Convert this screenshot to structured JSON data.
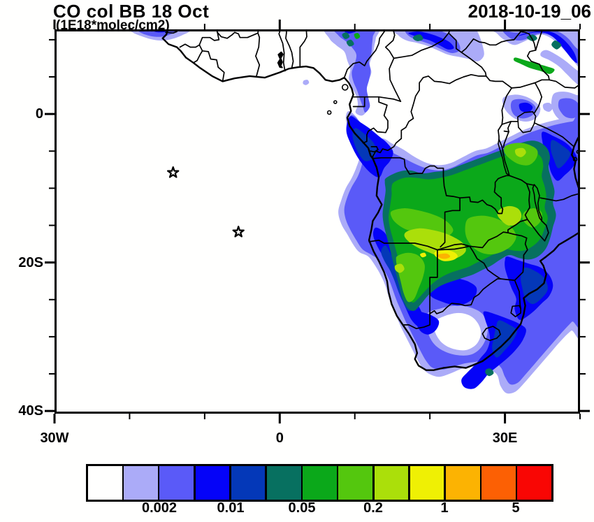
{
  "header": {
    "title": "CO col BB 18 Oct",
    "subtitle": "(1E18*molec/cm2)",
    "date": "2018-10-19_06"
  },
  "axis": {
    "y_major": [
      {
        "label": "0",
        "lat": 0
      },
      {
        "label": "20S",
        "lat": -20
      },
      {
        "label": "40S",
        "lat": -40
      }
    ],
    "y_minor": [
      10,
      5,
      -5,
      -10,
      -15,
      -25,
      -30,
      -35
    ],
    "x_major": [
      {
        "label": "30W",
        "lon": -30
      },
      {
        "label": "0",
        "lon": 0
      },
      {
        "label": "30E",
        "lon": 30
      }
    ],
    "x_minor": [
      -20,
      -10,
      10,
      20,
      40
    ]
  },
  "colorbar": {
    "colors": [
      "#FFFFFE",
      "#ABABF8",
      "#5A5AF8",
      "#0503F8",
      "#0438B8",
      "#077060",
      "#0BA81A",
      "#54C70E",
      "#ABDF0A",
      "#EFF004",
      "#FCB302",
      "#FC6004",
      "#F90604"
    ],
    "labels": [
      {
        "text": "0.002",
        "boundary": 2
      },
      {
        "text": "0.01",
        "boundary": 4
      },
      {
        "text": "0.05",
        "boundary": 6
      },
      {
        "text": "0.2",
        "boundary": 8
      },
      {
        "text": "1",
        "boundary": 10
      },
      {
        "text": "5",
        "boundary": 12
      }
    ]
  },
  "markers": {
    "stars": [
      {
        "lon": -14.2,
        "lat": -7.9
      },
      {
        "lon": -5.5,
        "lat": -15.9
      }
    ]
  },
  "frame": {
    "color": "#000000",
    "background": "#fffffe"
  },
  "chart_data": {
    "type": "filled-contour-map",
    "title": "CO col BB 18 Oct",
    "units": "1E18*molec/cm2",
    "timestamp": "2018-10-19_06",
    "lon_range": [
      -30,
      40
    ],
    "lat_range": [
      -40.4,
      11.4
    ],
    "x_tick_labels": [
      "30W",
      "0",
      "30E"
    ],
    "y_tick_labels": [
      "0",
      "20S",
      "40S"
    ],
    "contour_levels": [
      0.001,
      0.002,
      0.005,
      0.01,
      0.02,
      0.05,
      0.1,
      0.2,
      0.5,
      1,
      2,
      5
    ],
    "colorbar_labeled_levels": [
      0.002,
      0.01,
      0.05,
      0.2,
      1,
      5
    ],
    "palette": [
      "#FFFFFE",
      "#ABABF8",
      "#5A5AF8",
      "#0503F8",
      "#0438B8",
      "#077060",
      "#0BA81A",
      "#54C70E",
      "#ABDF0A",
      "#EFF004",
      "#FCB302",
      "#FC6004",
      "#F90604"
    ],
    "features": [
      "Main biomass-burning CO plume over southern Africa (Angola, Zambia, southern DRC, Zimbabwe, Tanzania) with values 0.2-1",
      "Peak cell ~1-5 E18 molec/cm2 (yellow/orange) near Angola-Namibia-Botswana-Zambia border ~19S 22E",
      "Blue outflow plume over eastern South Africa curving around the south coast",
      "Secondary plumes over Sudan/Ethiopia belt near 8-11N and Nigeria/Cameroon",
      "Two star markers in the South Atlantic (Ascension and St Helena island sites)"
    ]
  }
}
